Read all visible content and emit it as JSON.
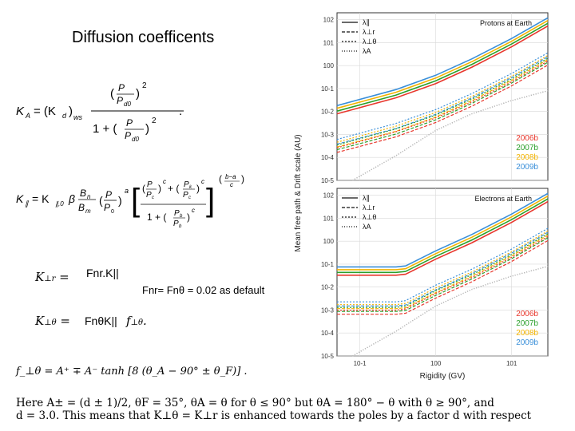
{
  "slide": {
    "title": "Diffusion coefficents",
    "eq_kperp_r_label": "Fnr.K||",
    "eq_kperp_theta_label": "FnθK||",
    "default_note": "Fnr= Fnθ = 0.02 as default",
    "eq_ka": "K_A = (K_d)_ws · (P/P_d0)^2 / (1 + (P/P_d0)^2)",
    "eq_kpar": "K_∥ = K_∥,0 β (B_n/B_m)(P/P_0)^a [ ((P/P_c)^c + (P_k/P_c)^c) / (1 + (P_b/P_b)^c) ]^((b−a)/c)",
    "eq_fperp": "f_⊥θ = A⁺ ∓ A⁻ tanh [8 (θ_A − 90° ± θ_F)] .",
    "bottom_line_1": "Here A± = (d ± 1)/2, θF = 35°, θA = θ for θ ≤ 90° but θA = 180° − θ with θ ≥ 90°, and",
    "bottom_line_2": "d = 3.0. This means that K⊥θ = K⊥r is enhanced towards the poles by a factor d with respect"
  },
  "chart_data": [
    {
      "type": "line",
      "title": "Protons at Earth",
      "ylabel": "Mean free path & Drift scale (AU)",
      "xlabel": "",
      "xscale": "log",
      "yscale": "log",
      "xlim": [
        0.05,
        30
      ],
      "ylim": [
        1e-05,
        200
      ],
      "ytick_labels": [
        "10^2",
        "10^1",
        "10^0",
        "10^-1",
        "10^-2",
        "10^-3",
        "10^-4",
        "10^-5"
      ],
      "legend": [
        "λ∥",
        "λ⊥r",
        "λ⊥θ",
        "λA"
      ],
      "year_labels": [
        "2006b",
        "2007b",
        "2008b",
        "2009b"
      ],
      "year_colors": [
        "#e8372c",
        "#2ca02c",
        "#f2b300",
        "#3a8fd9"
      ],
      "grid": true,
      "series": [
        {
          "name": "λ∥",
          "x": [
            0.05,
            0.3,
            1,
            3,
            10,
            30
          ],
          "y": [
            0.012,
            0.06,
            0.25,
            1.3,
            10,
            80
          ]
        },
        {
          "name": "λ⊥r",
          "x": [
            0.05,
            0.3,
            1,
            3,
            10,
            30
          ],
          "y": [
            0.00025,
            0.0012,
            0.005,
            0.026,
            0.2,
            1.6
          ]
        },
        {
          "name": "λ⊥θ",
          "x": [
            0.05,
            0.3,
            1,
            3,
            10,
            30
          ],
          "y": [
            0.0004,
            0.002,
            0.008,
            0.04,
            0.3,
            2.4
          ]
        },
        {
          "name": "λA",
          "x": [
            0.08,
            0.3,
            1,
            3,
            10,
            30
          ],
          "y": [
            1e-05,
            0.00012,
            0.0015,
            0.008,
            0.03,
            0.08
          ]
        }
      ]
    },
    {
      "type": "line",
      "title": "Electrons at Earth",
      "ylabel": "Mean free path & Drift scale (AU)",
      "xlabel": "Rigidity (GV)",
      "xscale": "log",
      "yscale": "log",
      "xlim": [
        0.05,
        30
      ],
      "ylim": [
        1e-05,
        200
      ],
      "ytick_labels": [
        "10^2",
        "10^1",
        "10^0",
        "10^-1",
        "10^-2",
        "10^-3",
        "10^-4",
        "10^-5"
      ],
      "xtick_labels": [
        "10^-1",
        "10^0",
        "10^1"
      ],
      "legend": [
        "λ∥",
        "λ⊥r",
        "λ⊥θ",
        "λA"
      ],
      "year_labels": [
        "2006b",
        "2007b",
        "2008b",
        "2009b"
      ],
      "year_colors": [
        "#e8372c",
        "#2ca02c",
        "#f2b300",
        "#3a8fd9"
      ],
      "grid": true,
      "series": [
        {
          "name": "λ∥",
          "x": [
            0.05,
            0.3,
            0.4,
            1,
            3,
            10,
            30
          ],
          "y": [
            0.05,
            0.05,
            0.055,
            0.25,
            1.3,
            10,
            80
          ]
        },
        {
          "name": "λ⊥r",
          "x": [
            0.05,
            0.3,
            0.4,
            1,
            3,
            10,
            30
          ],
          "y": [
            0.001,
            0.001,
            0.0011,
            0.005,
            0.026,
            0.2,
            1.6
          ]
        },
        {
          "name": "λ⊥θ",
          "x": [
            0.05,
            0.3,
            0.4,
            1,
            3,
            10,
            30
          ],
          "y": [
            0.0015,
            0.0015,
            0.0017,
            0.008,
            0.04,
            0.3,
            2.4
          ]
        },
        {
          "name": "λA",
          "x": [
            0.08,
            0.3,
            1,
            3,
            10,
            30
          ],
          "y": [
            1e-05,
            0.00012,
            0.0015,
            0.008,
            0.03,
            0.08
          ]
        }
      ]
    }
  ]
}
